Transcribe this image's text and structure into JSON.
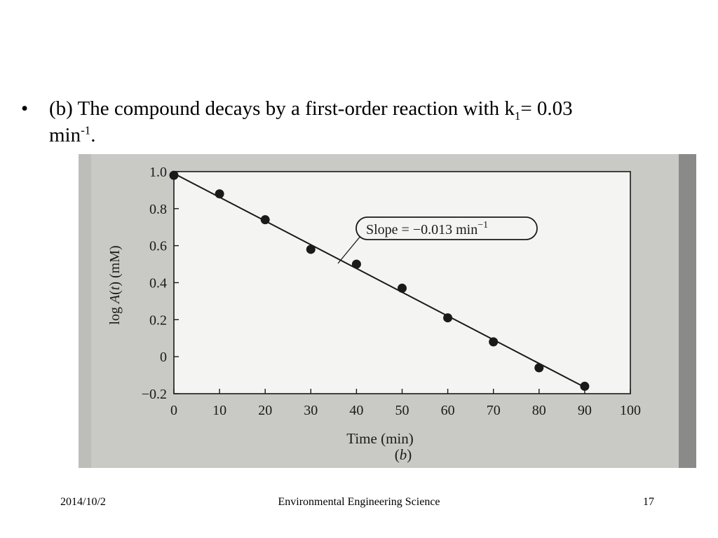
{
  "slide": {
    "bullet_symbol": "•",
    "bullet_text_part1": "(b) The compound decays by a first-order reaction with k",
    "bullet_sub": "1",
    "bullet_text_part2": "=  0.03",
    "bullet_text_part3": "min",
    "bullet_sup": "-1",
    "bullet_text_part4": "."
  },
  "footer": {
    "date": "2014/10/2",
    "title": "Environmental Engineering Science",
    "page": "17"
  },
  "chart_data": {
    "type": "scatter",
    "x": [
      0,
      10,
      20,
      30,
      40,
      50,
      60,
      70,
      80,
      90
    ],
    "y": [
      0.98,
      0.88,
      0.74,
      0.58,
      0.5,
      0.37,
      0.21,
      0.08,
      -0.06,
      -0.16
    ],
    "fit_line": {
      "x": [
        0,
        90
      ],
      "y": [
        0.99,
        -0.165
      ]
    },
    "xlabel": "Time (min)",
    "ylabel_prefix": "log ",
    "ylabel_italic": "A",
    "ylabel_paren_open": "(",
    "ylabel_italic_t": "t",
    "ylabel_suffix": ") (mM)",
    "xlim": [
      0,
      100
    ],
    "ylim": [
      -0.2,
      1.0
    ],
    "xticks": [
      "0",
      "10",
      "20",
      "30",
      "40",
      "50",
      "60",
      "70",
      "80",
      "90",
      "100"
    ],
    "yticks": [
      "1.0",
      "0.8",
      "0.6",
      "0.4",
      "0.2",
      "0",
      "−0.2"
    ],
    "annotation": {
      "text": "Slope = −0.013  min",
      "superscript": "−1"
    },
    "caption_open": "(",
    "caption_italic": "b",
    "caption_close": ")",
    "grid": false,
    "colors": {
      "marker": "#1a1a1a",
      "line": "#1a1a1a",
      "plot_bg": "#f4f4f2",
      "scan_bg": "#c9c9c6"
    }
  }
}
